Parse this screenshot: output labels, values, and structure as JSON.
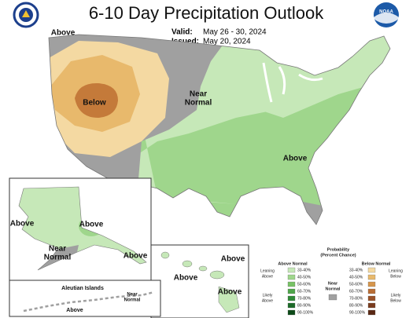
{
  "header": {
    "title": "6-10 Day Precipitation Outlook",
    "valid_label": "Valid:",
    "valid_dates": "May 26 - 30, 2024",
    "issued_label": "Issued:",
    "issued_date": "May 20, 2024",
    "noaa_logo_text": "NOAA"
  },
  "map_labels": [
    {
      "lines": [
        "Above"
      ]
    },
    {
      "lines": [
        "Below"
      ]
    },
    {
      "lines": [
        "Near",
        "Normal"
      ]
    },
    {
      "lines": [
        "Above"
      ]
    },
    {
      "lines": [
        "Above"
      ]
    },
    {
      "lines": [
        "Above"
      ]
    },
    {
      "lines": [
        "Near",
        "Normal"
      ]
    },
    {
      "lines": [
        "Above"
      ]
    },
    {
      "lines": [
        "Above"
      ]
    },
    {
      "lines": [
        "Above"
      ]
    },
    {
      "lines": [
        "Above"
      ]
    },
    {
      "lines": [
        "Aleutian Islands"
      ]
    },
    {
      "lines": [
        "Near",
        "Normal"
      ]
    },
    {
      "lines": [
        "Above"
      ]
    }
  ],
  "legend": {
    "title": [
      "Probability",
      "(Percent Chance)"
    ],
    "above_heading": "Above Normal",
    "below_heading": "Below Normal",
    "ranges": [
      "33-40%",
      "40-50%",
      "50-60%",
      "60-70%",
      "70-80%",
      "80-90%",
      "90-100%"
    ],
    "above_colors": [
      "#c6e8b8",
      "#9fd68c",
      "#78c266",
      "#4fa64a",
      "#2f8a37",
      "#1c6a28",
      "#0c4a18"
    ],
    "below_colors": [
      "#f4d9a2",
      "#e8b96c",
      "#d6964c",
      "#b96e35",
      "#9a5228",
      "#7a3b1e",
      "#5a2814"
    ],
    "near_color": "#a0a0a0",
    "groups": {
      "leaning_above": [
        "Leaning",
        "Above"
      ],
      "likely_above": [
        "Likely",
        "Above"
      ],
      "near_normal": [
        "Near",
        "Normal"
      ],
      "leaning_below": [
        "Leaning",
        "Below"
      ],
      "likely_below": [
        "Likely",
        "Below"
      ]
    }
  }
}
